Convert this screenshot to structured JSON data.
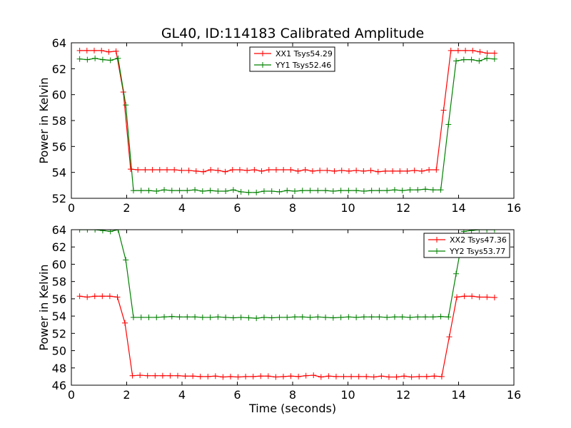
{
  "title": "GL40, ID:114183 Calibrated Amplitude",
  "chart_data": [
    {
      "type": "line",
      "xlabel": "",
      "ylabel": "Power in Kelvin",
      "xlim": [
        0,
        16
      ],
      "ylim": [
        52,
        64
      ],
      "xticks": [
        0,
        2,
        4,
        6,
        8,
        10,
        12,
        14,
        16
      ],
      "yticks": [
        52,
        54,
        56,
        58,
        60,
        62,
        64
      ],
      "legend_position": "top-center",
      "grid": false,
      "series": [
        {
          "name": "XX1 Tsys54.29",
          "color": "#ff0000",
          "values": [
            63.4,
            63.4,
            63.4,
            63.4,
            63.3,
            63.35,
            60.2,
            54.25,
            54.2,
            54.2,
            54.2,
            54.2,
            54.2,
            54.2,
            54.15,
            54.15,
            54.1,
            54.05,
            54.2,
            54.15,
            54.05,
            54.2,
            54.2,
            54.15,
            54.2,
            54.1,
            54.2,
            54.2,
            54.2,
            54.2,
            54.1,
            54.2,
            54.1,
            54.15,
            54.15,
            54.1,
            54.15,
            54.1,
            54.15,
            54.1,
            54.15,
            54.05,
            54.1,
            54.1,
            54.1,
            54.1,
            54.15,
            54.1,
            54.2,
            54.2,
            58.8,
            63.4,
            63.4,
            63.4,
            63.4,
            63.3,
            63.2,
            63.2
          ]
        },
        {
          "name": "YY1 Tsys52.46",
          "color": "#008000",
          "values": [
            62.75,
            62.7,
            62.8,
            62.7,
            62.65,
            62.8,
            59.2,
            52.6,
            52.6,
            52.6,
            52.55,
            52.65,
            52.6,
            52.6,
            52.6,
            52.65,
            52.55,
            52.6,
            52.55,
            52.55,
            52.65,
            52.5,
            52.45,
            52.45,
            52.55,
            52.55,
            52.5,
            52.6,
            52.55,
            52.6,
            52.6,
            52.6,
            52.6,
            52.55,
            52.6,
            52.6,
            52.6,
            52.55,
            52.6,
            52.6,
            52.6,
            52.65,
            52.6,
            52.65,
            52.65,
            52.7,
            52.65,
            52.65,
            57.7,
            62.6,
            62.7,
            62.7,
            62.6,
            62.8,
            62.75
          ]
        }
      ]
    },
    {
      "type": "line",
      "xlabel": "Time (seconds)",
      "ylabel": "Power in Kelvin",
      "xlim": [
        0,
        16
      ],
      "ylim": [
        46,
        64
      ],
      "xticks": [
        0,
        2,
        4,
        6,
        8,
        10,
        12,
        14,
        16
      ],
      "yticks": [
        46,
        48,
        50,
        52,
        54,
        56,
        58,
        60,
        62,
        64
      ],
      "legend_position": "top-right",
      "grid": false,
      "series": [
        {
          "name": "XX2 Tsys47.36",
          "color": "#ff0000",
          "values": [
            56.3,
            56.2,
            56.3,
            56.3,
            56.3,
            56.2,
            53.2,
            47.1,
            47.15,
            47.1,
            47.1,
            47.1,
            47.1,
            47.1,
            47.05,
            47.05,
            47.0,
            47.0,
            47.05,
            46.95,
            47.0,
            46.95,
            47.0,
            47.0,
            47.05,
            47.05,
            46.95,
            47.0,
            47.05,
            47.0,
            47.1,
            47.15,
            46.95,
            47.05,
            47.0,
            47.0,
            47.0,
            47.0,
            47.0,
            46.95,
            47.05,
            46.95,
            46.95,
            47.05,
            46.95,
            47.0,
            47.0,
            47.05,
            47.0,
            51.6,
            56.2,
            56.3,
            56.3,
            56.2,
            56.2,
            56.15
          ]
        },
        {
          "name": "YY2 Tsys53.77",
          "color": "#008000",
          "values": [
            64.0,
            64.0,
            64.0,
            63.9,
            63.8,
            64.0,
            60.5,
            53.85,
            53.85,
            53.85,
            53.85,
            53.9,
            53.95,
            53.9,
            53.9,
            53.9,
            53.85,
            53.85,
            53.9,
            53.85,
            53.8,
            53.85,
            53.8,
            53.75,
            53.85,
            53.8,
            53.85,
            53.85,
            53.9,
            53.9,
            53.85,
            53.9,
            53.85,
            53.8,
            53.85,
            53.9,
            53.85,
            53.9,
            53.9,
            53.9,
            53.85,
            53.9,
            53.9,
            53.85,
            53.9,
            53.9,
            53.9,
            53.95,
            53.9,
            58.9,
            63.8,
            63.9,
            64.0,
            64.0,
            64.0
          ]
        }
      ]
    }
  ]
}
